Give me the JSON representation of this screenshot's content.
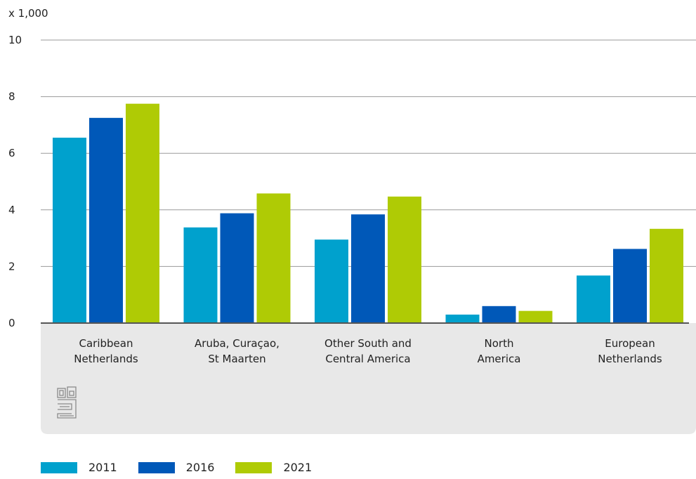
{
  "chart_data": {
    "type": "bar",
    "unit_label": "x 1,000",
    "categories": [
      [
        "Caribbean",
        "Netherlands"
      ],
      [
        "Aruba, Curaçao,",
        "St Maarten"
      ],
      [
        "Other South and",
        "Central America"
      ],
      [
        "North",
        "America"
      ],
      [
        "European",
        "Netherlands"
      ]
    ],
    "series": [
      {
        "name": "2011",
        "color": "#00a1cd",
        "values": [
          6.55,
          3.38,
          2.95,
          0.3,
          1.68
        ]
      },
      {
        "name": "2016",
        "color": "#0058b8",
        "values": [
          7.25,
          3.88,
          3.84,
          0.6,
          2.62
        ]
      },
      {
        "name": "2021",
        "color": "#afcb05",
        "values": [
          7.75,
          4.58,
          4.47,
          0.43,
          3.33
        ]
      }
    ],
    "ylim": [
      0,
      10
    ],
    "yticks": [
      0,
      2,
      4,
      6,
      8,
      10
    ],
    "grid": true,
    "legend_position": "bottom-left",
    "logo": "cbs-logo"
  }
}
